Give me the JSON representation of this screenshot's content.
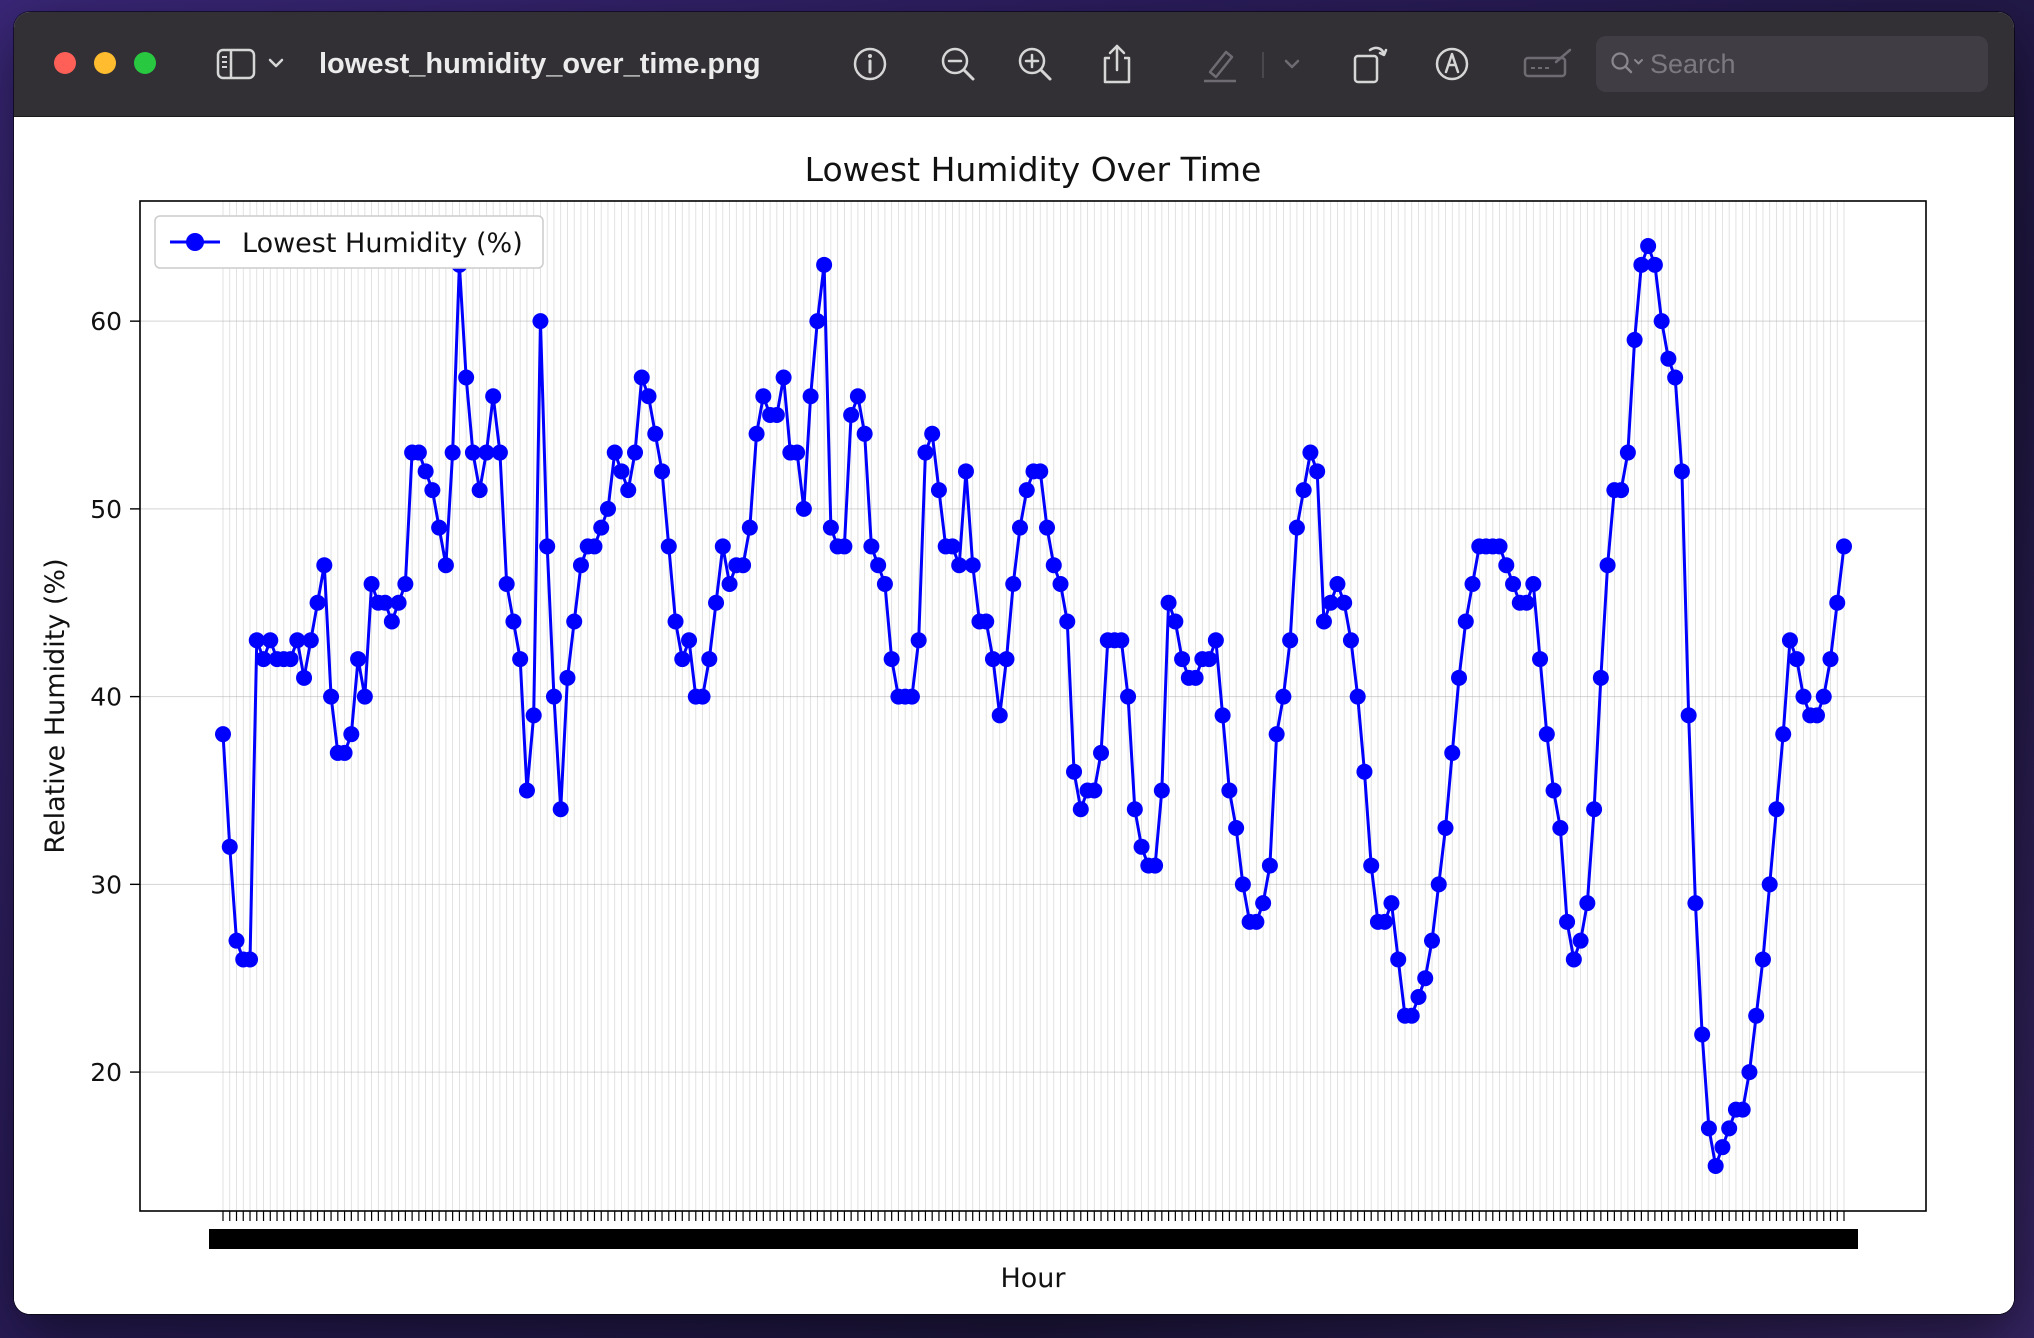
{
  "window": {
    "title": "lowest_humidity_over_time.png",
    "search_placeholder": "Search"
  },
  "toolbar": {
    "icons": [
      "sidebar-toggle-icon",
      "chevron-down-icon",
      "info-icon",
      "zoom-out-icon",
      "zoom-in-icon",
      "share-icon",
      "highlight-pen-icon",
      "chevron-down-icon",
      "rotate-icon",
      "markup-icon",
      "signature-icon",
      "search-icon"
    ]
  },
  "chart_data": {
    "type": "line",
    "title": "Lowest Humidity Over Time",
    "xlabel": "Hour",
    "ylabel": "Relative Humidity (%)",
    "ylim": [
      12.6,
      66.4
    ],
    "yticks": [
      20,
      30,
      40,
      50,
      60
    ],
    "grid": true,
    "legend_position": "upper left",
    "xtick_labels_note": "overlapping illegible tick labels",
    "series": [
      {
        "name": "Lowest Humidity (%)",
        "color": "#0000ff",
        "values": [
          38,
          32,
          27,
          26,
          26,
          43,
          42,
          43,
          42,
          42,
          42,
          43,
          41,
          43,
          45,
          47,
          40,
          37,
          37,
          38,
          42,
          40,
          46,
          45,
          45,
          44,
          45,
          46,
          53,
          53,
          52,
          51,
          49,
          47,
          53,
          63,
          57,
          53,
          51,
          53,
          56,
          53,
          46,
          44,
          42,
          35,
          39,
          60,
          48,
          40,
          34,
          41,
          44,
          47,
          48,
          48,
          49,
          50,
          53,
          52,
          51,
          53,
          57,
          56,
          54,
          52,
          48,
          44,
          42,
          43,
          40,
          40,
          42,
          45,
          48,
          46,
          47,
          47,
          49,
          54,
          56,
          55,
          55,
          57,
          53,
          53,
          50,
          56,
          60,
          63,
          49,
          48,
          48,
          55,
          56,
          54,
          48,
          47,
          46,
          42,
          40,
          40,
          40,
          43,
          53,
          54,
          51,
          48,
          48,
          47,
          52,
          47,
          44,
          44,
          42,
          39,
          42,
          46,
          49,
          51,
          52,
          52,
          49,
          47,
          46,
          44,
          36,
          34,
          35,
          35,
          37,
          43,
          43,
          43,
          40,
          34,
          32,
          31,
          31,
          35,
          45,
          44,
          42,
          41,
          41,
          42,
          42,
          43,
          39,
          35,
          33,
          30,
          28,
          28,
          29,
          31,
          38,
          40,
          43,
          49,
          51,
          53,
          52,
          44,
          45,
          46,
          45,
          43,
          40,
          36,
          31,
          28,
          28,
          29,
          26,
          23,
          23,
          24,
          25,
          27,
          30,
          33,
          37,
          41,
          44,
          46,
          48,
          48,
          48,
          48,
          47,
          46,
          45,
          45,
          46,
          42,
          38,
          35,
          33,
          28,
          26,
          27,
          29,
          34,
          41,
          47,
          51,
          51,
          53,
          59,
          63,
          64,
          63,
          60,
          58,
          57,
          52,
          39,
          29,
          22,
          17,
          15,
          16,
          17,
          18,
          18,
          20,
          23,
          26,
          30,
          34,
          38,
          43,
          42,
          40,
          39,
          39,
          40,
          42,
          45,
          48
        ]
      }
    ]
  }
}
